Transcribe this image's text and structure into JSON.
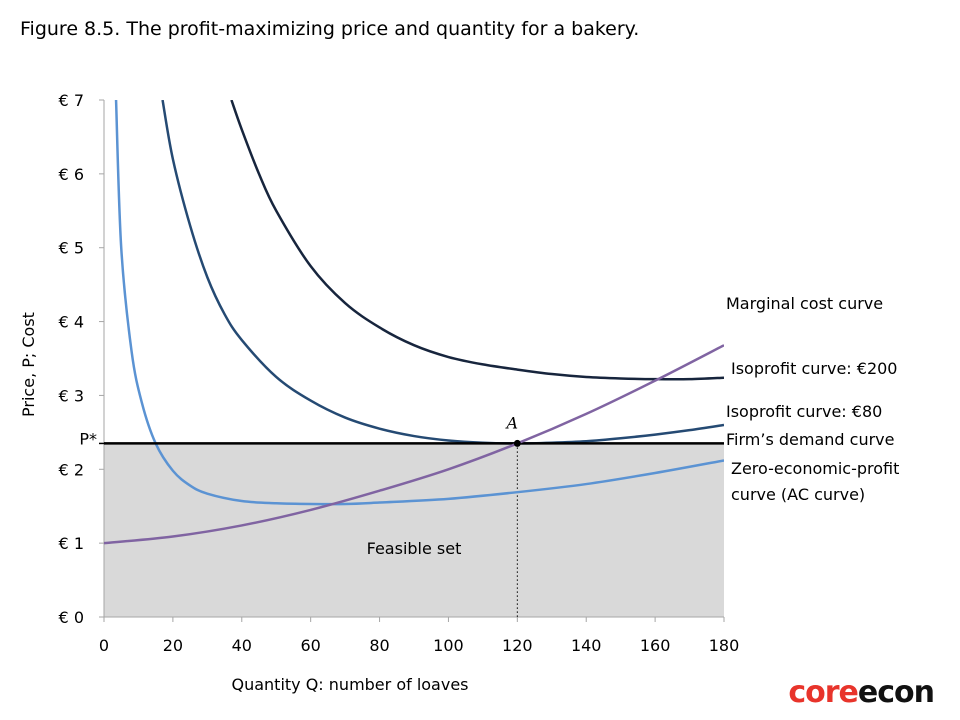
{
  "title": "Figure 8.5. The profit-maximizing price and quantity for a bakery.",
  "logo": {
    "part1": "core",
    "part2": "econ"
  },
  "chart_data": {
    "type": "line",
    "xlabel": "Quantity Q: number of loaves",
    "ylabel": "Price, P; Cost",
    "xlim": [
      0,
      180
    ],
    "ylim": [
      0,
      7
    ],
    "x_ticks": [
      0,
      20,
      40,
      60,
      80,
      100,
      120,
      140,
      160,
      180
    ],
    "x_tick_labels": [
      "0",
      "20",
      "40",
      "60",
      "80",
      "100",
      "120",
      "140",
      "160",
      "180"
    ],
    "y_ticks": [
      0,
      1,
      2,
      3,
      4,
      5,
      6,
      7
    ],
    "y_tick_labels": [
      "€ 0",
      "€ 1",
      "€ 2",
      "€ 3",
      "€ 4",
      "€ 5",
      "€ 6",
      "€ 7"
    ],
    "p_star": {
      "label": "P*",
      "value": 2.35
    },
    "optimum": {
      "label": "A",
      "x": 120,
      "y": 2.35
    },
    "feasible_set_label": "Feasible set",
    "colors": {
      "feasible": "#d9d9d9",
      "demand": "#000000",
      "marginal_cost": "#8064a2",
      "isoprofit_200": "#17253d",
      "isoprofit_80": "#254a73",
      "ac": "#5b93d3"
    },
    "series": [
      {
        "name": "Zero-economic-profit curve (AC curve)",
        "key": "ac",
        "x": [
          3.5,
          5,
          8,
          11,
          15,
          20,
          25,
          30,
          40,
          50,
          60,
          70,
          80,
          100,
          120,
          140,
          160,
          180
        ],
        "y": [
          7,
          5.0,
          3.6,
          2.9,
          2.35,
          1.98,
          1.78,
          1.67,
          1.57,
          1.54,
          1.53,
          1.53,
          1.55,
          1.6,
          1.69,
          1.8,
          1.95,
          2.12
        ]
      },
      {
        "name": "Isoprofit curve: €80",
        "key": "isoprofit_80",
        "x": [
          17,
          20,
          25,
          30,
          35,
          40,
          50,
          60,
          70,
          80,
          90,
          100,
          110,
          120,
          130,
          140,
          150,
          160,
          170,
          180
        ],
        "y": [
          7,
          6.2,
          5.3,
          4.6,
          4.1,
          3.75,
          3.25,
          2.93,
          2.7,
          2.55,
          2.45,
          2.39,
          2.36,
          2.35,
          2.36,
          2.38,
          2.42,
          2.47,
          2.53,
          2.6
        ]
      },
      {
        "name": "Isoprofit curve: €200",
        "key": "isoprofit_200",
        "x": [
          37,
          40,
          45,
          50,
          60,
          70,
          80,
          90,
          100,
          110,
          120,
          130,
          140,
          150,
          160,
          170,
          180
        ],
        "y": [
          7,
          6.6,
          6.0,
          5.5,
          4.75,
          4.25,
          3.92,
          3.68,
          3.52,
          3.42,
          3.35,
          3.29,
          3.25,
          3.23,
          3.22,
          3.22,
          3.24
        ]
      },
      {
        "name": "Firm’s demand curve",
        "key": "demand",
        "x": [
          0,
          180
        ],
        "y": [
          2.35,
          2.35
        ]
      },
      {
        "name": "Marginal cost curve",
        "key": "marginal_cost",
        "x": [
          0,
          20,
          40,
          60,
          80,
          100,
          120,
          140,
          160,
          180
        ],
        "y": [
          1.0,
          1.09,
          1.24,
          1.45,
          1.71,
          2.0,
          2.35,
          2.75,
          3.2,
          3.68
        ]
      }
    ],
    "curve_labels": [
      {
        "key": "marginal_cost",
        "lines": [
          "Marginal cost curve"
        ]
      },
      {
        "key": "isoprofit_200",
        "lines": [
          "Isoprofit curve: €200"
        ]
      },
      {
        "key": "isoprofit_80",
        "lines": [
          "Isoprofit curve: €80"
        ]
      },
      {
        "key": "demand",
        "lines": [
          "Firm’s demand curve"
        ]
      },
      {
        "key": "ac",
        "lines": [
          "Zero-economic-profit",
          "curve (AC curve)"
        ]
      }
    ]
  }
}
